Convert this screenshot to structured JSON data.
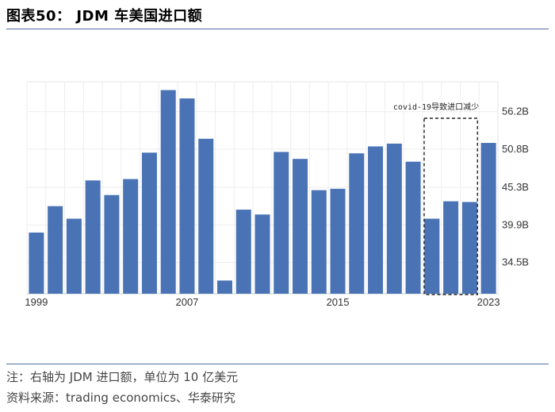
{
  "title": "图表50： JDM 车美国进口额",
  "note": "注：右轴为 JDM 进口额，单位为 10 亿美元",
  "source": "资料来源：trading economics、华泰研究",
  "chart_data": {
    "type": "bar",
    "title": "",
    "xlabel": "",
    "ylabel": "",
    "x_tick_labels": [
      "1999",
      "2007",
      "2015",
      "2023"
    ],
    "y_tick_labels": [
      "34.5B",
      "39.9B",
      "45.3B",
      "50.8B",
      "56.2B"
    ],
    "y_ticks": [
      34.5,
      39.9,
      45.3,
      50.8,
      56.2
    ],
    "ylim": [
      30.0,
      60.5
    ],
    "y_axis_side": "right",
    "grid": true,
    "bar_color": "#4a73b5",
    "categories": [
      "1999",
      "2000",
      "2001",
      "2002",
      "2003",
      "2004",
      "2005",
      "2006",
      "2007",
      "2008",
      "2009",
      "2010",
      "2011",
      "2012",
      "2013",
      "2014",
      "2015",
      "2016",
      "2017",
      "2018",
      "2019",
      "2020",
      "2021",
      "2022",
      "2023"
    ],
    "values": [
      38.8,
      42.6,
      40.8,
      46.3,
      44.2,
      46.5,
      50.3,
      59.3,
      58.1,
      52.3,
      31.9,
      42.1,
      41.4,
      50.4,
      49.4,
      44.9,
      45.1,
      50.2,
      51.2,
      51.6,
      49.0,
      40.8,
      43.3,
      43.2,
      51.7
    ],
    "annotation": {
      "text": "covid-19导致进口减少",
      "range": [
        "2020",
        "2022"
      ]
    }
  }
}
